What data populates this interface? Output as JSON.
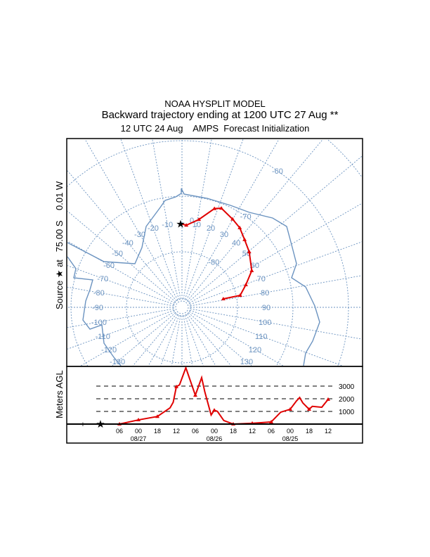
{
  "titles": {
    "model": "NOAA HYSPLIT MODEL",
    "main": "Backward trajectory ending at 1200 UTC 27 Aug **",
    "sub": "12 UTC 24 Aug    AMPS  Forecast Initialization"
  },
  "source_label": "Source ★ at   75.00 S    0.01 W",
  "colors": {
    "trajectory": "#e00000",
    "map": "#6b93c0",
    "axis": "#000000"
  },
  "chart_data": [
    {
      "type": "line",
      "title": "Backward trajectory (polar stereographic map)",
      "source": {
        "lat": -75.0,
        "lon": -0.01
      },
      "lat_circles": [
        -80,
        -70,
        -60,
        -50
      ],
      "lat_labels": [
        "-80",
        "-70",
        "-60"
      ],
      "lon_labels": [
        "-130",
        "-120",
        "-110",
        "-100",
        "-90",
        "-80",
        "-70",
        "-60",
        "-50",
        "-40",
        "-30",
        "-20",
        "-10",
        "0",
        "10",
        "20",
        "30",
        "40",
        "50",
        "60",
        "70",
        "80",
        "90",
        "100",
        "110",
        "120",
        "130"
      ],
      "trajectory": [
        {
          "lat": -75.0,
          "lon": 0.0
        },
        {
          "lat": -75.2,
          "lon": 3
        },
        {
          "lat": -73.9,
          "lon": 10.9
        },
        {
          "lat": -71.3,
          "lon": 18.2
        },
        {
          "lat": -70.8,
          "lon": 21.7
        },
        {
          "lat": -71.7,
          "lon": 29.9
        },
        {
          "lat": -72.3,
          "lon": 36.0
        },
        {
          "lat": -73.4,
          "lon": 42.8
        },
        {
          "lat": -74.3,
          "lon": 50.5
        },
        {
          "lat": -75.8,
          "lon": 62.3
        },
        {
          "lat": -77.8,
          "lon": 70.6
        },
        {
          "lat": -79.3,
          "lon": 78.4
        },
        {
          "lat": -82.4,
          "lon": 78.5
        }
      ]
    },
    {
      "type": "line",
      "ylabel": "Meters AGL",
      "y_ref_lines": [
        1000,
        2000,
        3000
      ],
      "y_ref_labels": [
        "1000",
        "2000",
        "3000"
      ],
      "ylim": [
        0,
        4500
      ],
      "x_unit": "hours backward from 12 UTC 27 Aug",
      "x_ticks": [
        {
          "h": 6,
          "label": "06"
        },
        {
          "h": 12,
          "label": "00"
        },
        {
          "h": 18,
          "label": "18"
        },
        {
          "h": 24,
          "label": "12"
        },
        {
          "h": 30,
          "label": "06"
        },
        {
          "h": 36,
          "label": "00"
        },
        {
          "h": 42,
          "label": "18"
        },
        {
          "h": 48,
          "label": "12"
        },
        {
          "h": 54,
          "label": "06"
        },
        {
          "h": 60,
          "label": "00"
        },
        {
          "h": 66,
          "label": "18"
        },
        {
          "h": 72,
          "label": "12"
        }
      ],
      "date_labels": [
        {
          "h": 12,
          "label": "08/27"
        },
        {
          "h": 36,
          "label": "08/26"
        },
        {
          "h": 60,
          "label": "08/25"
        }
      ],
      "hours": [
        0,
        6,
        12,
        18,
        22,
        23,
        24,
        25,
        27,
        30,
        32,
        33,
        35,
        36,
        37,
        39,
        42,
        48,
        54,
        57,
        60,
        62,
        63,
        64,
        66,
        67,
        70,
        72
      ],
      "meters": [
        0,
        0,
        330,
        600,
        1280,
        1720,
        2950,
        3100,
        4450,
        2280,
        3670,
        2550,
        720,
        1100,
        1000,
        280,
        0,
        60,
        170,
        940,
        1170,
        1830,
        2100,
        1670,
        1170,
        1400,
        1330,
        1950
      ],
      "markers_every_hours": 6
    }
  ]
}
